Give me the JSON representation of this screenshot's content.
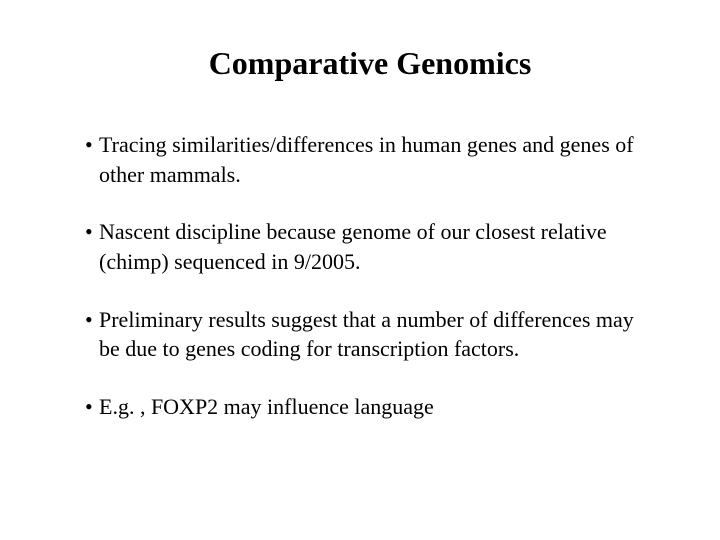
{
  "slide": {
    "title": "Comparative Genomics",
    "bullets": [
      "Tracing similarities/differences in human genes and genes of other mammals.",
      "Nascent discipline because genome of our closest relative (chimp) sequenced in 9/2005.",
      "Preliminary results suggest that a number of differences may be due to genes coding for transcription factors.",
      "E.g. , FOXP2 may influence language"
    ],
    "background_color": "#ffffff",
    "text_color": "#000000",
    "title_fontsize": 32,
    "body_fontsize": 22,
    "font_family": "Times New Roman"
  }
}
